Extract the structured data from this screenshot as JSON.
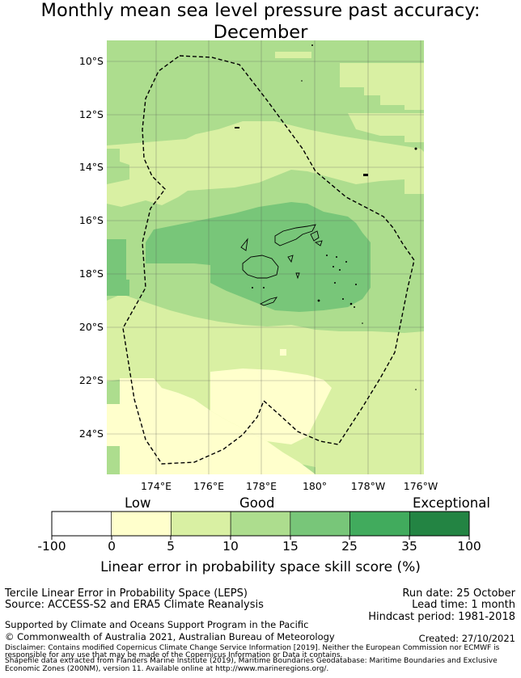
{
  "title_line1": "Monthly mean sea level pressure past accuracy:",
  "title_line2": "December",
  "map": {
    "lat_labels": [
      "10°S",
      "12°S",
      "14°S",
      "16°S",
      "18°S",
      "20°S",
      "22°S",
      "24°S"
    ],
    "lon_labels": [
      "174°E",
      "176°E",
      "178°E",
      "180°",
      "178°W",
      "176°W"
    ],
    "extent": {
      "lon_min": 172.0,
      "lon_max": 184.0,
      "lat_min": -25.5,
      "lat_max": -9.2
    }
  },
  "colorbar": {
    "category_labels": [
      "Low",
      "Good",
      "Exceptional"
    ],
    "ticks": [
      "-100",
      "0",
      "5",
      "10",
      "15",
      "25",
      "35",
      "100"
    ],
    "colors": [
      "#ffffff",
      "#ffffcc",
      "#d9f0a3",
      "#addd8e",
      "#78c679",
      "#41ab5d",
      "#238443"
    ],
    "title": "Linear error in probability space skill score (%)"
  },
  "info": {
    "method": "Tercile Linear Error in Probability Space (LEPS)",
    "source": "Source: ACCESS-S2 and ERA5 Climate Reanalysis",
    "run_date": "Run date: 25 October",
    "lead_time": "Lead time: 1 month",
    "hindcast": "Hindcast period: 1981-2018",
    "support": "Supported by Climate and Oceans Support Program in the Pacific",
    "copyright": "© Commonwealth of Australia 2021, Australian Bureau of Meteorology",
    "created": "Created: 27/10/2021",
    "disclaimer1": "Disclaimer: Contains modified Copernicus Climate Change Service Information [2019]. Neither the European Commission nor ECMWF is",
    "disclaimer2": "responsible for any use that may be made of the Copernicus Information or Data it contains.",
    "shapefile1": "Shapefile data extracted from Flanders Marine Institute (2019), Maritime Boundaries Geodatabase: Maritime Boundaries and Exclusive",
    "shapefile2": "Economic Zones (200NM), version 11. Available online at http://www.marineregions.org/."
  }
}
